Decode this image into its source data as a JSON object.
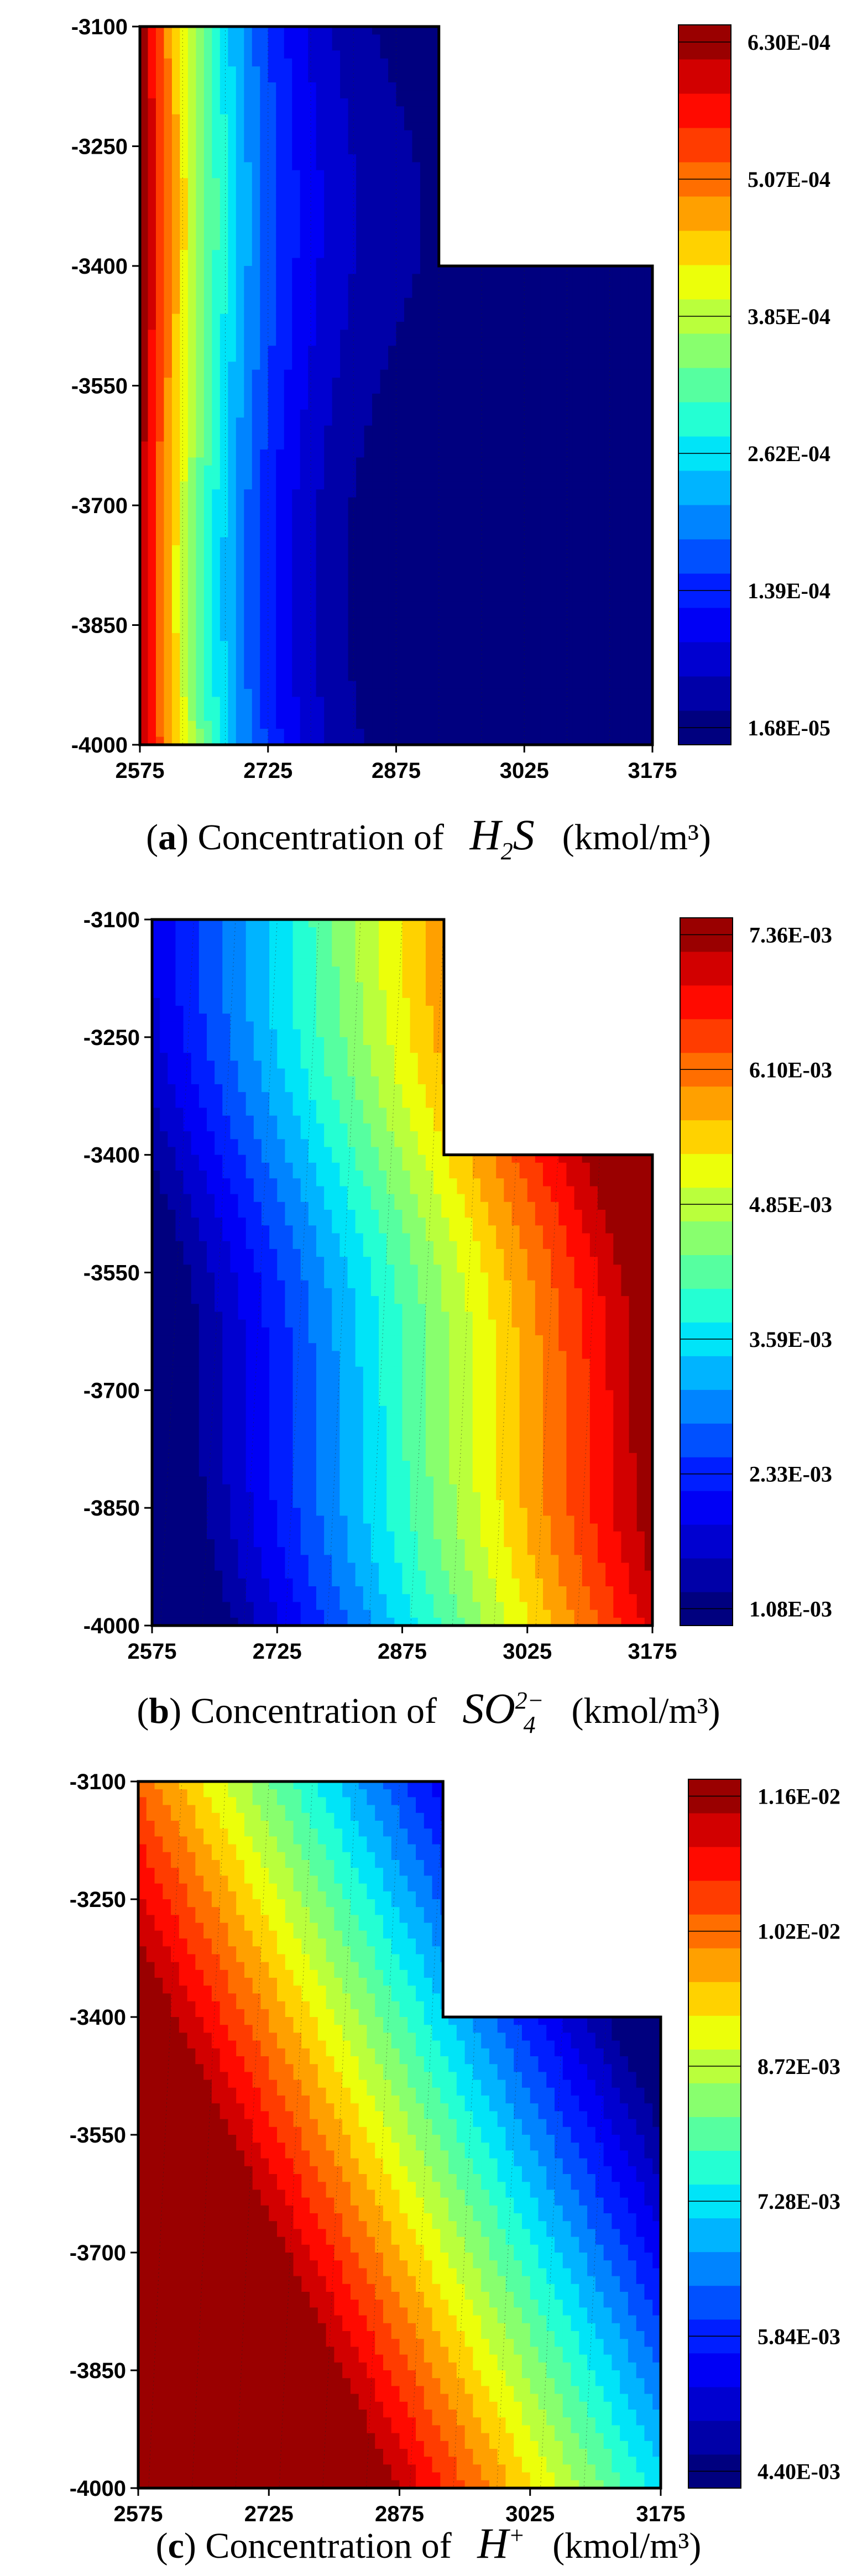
{
  "chart_data": [
    {
      "type": "contour",
      "panel_label": "a",
      "caption_prefix": "Concentration of",
      "species": {
        "base": "H",
        "sub": "2",
        "after": "S",
        "sup": ""
      },
      "unit": "(kmol/m³)",
      "x_ticks": [
        "2575",
        "2725",
        "2875",
        "3025",
        "3175"
      ],
      "y_ticks": [
        "-3100",
        "-3250",
        "-3400",
        "-3550",
        "-3700",
        "-3850",
        "-4000"
      ],
      "xlim": [
        2575,
        3175
      ],
      "ylim": [
        -4000,
        -3100
      ],
      "domain_outline": [
        [
          2575,
          -3100
        ],
        [
          2925,
          -3100
        ],
        [
          2925,
          -3400
        ],
        [
          3175,
          -3400
        ],
        [
          3175,
          -4000
        ],
        [
          2575,
          -4000
        ]
      ],
      "colorbar_labels": [
        "6.30E-04",
        "5.07E-04",
        "3.85E-04",
        "2.62E-04",
        "1.39E-04",
        "1.68E-05"
      ],
      "levels": 21,
      "trend": "high at left boundary (x=2575), decreasing rightward",
      "colors": {
        "low": "#00007f",
        "high": "#9a0000"
      }
    },
    {
      "type": "contour",
      "panel_label": "b",
      "caption_prefix": "Concentration of",
      "species": {
        "base": "SO",
        "sub": "4",
        "after": "",
        "sup": "2−"
      },
      "unit": "(kmol/m³)",
      "x_ticks": [
        "2575",
        "2725",
        "2875",
        "3025",
        "3175"
      ],
      "y_ticks": [
        "-3100",
        "-3250",
        "-3400",
        "-3550",
        "-3700",
        "-3850",
        "-4000"
      ],
      "xlim": [
        2575,
        3175
      ],
      "ylim": [
        -4000,
        -3100
      ],
      "domain_outline": [
        [
          2575,
          -3100
        ],
        [
          2925,
          -3100
        ],
        [
          2925,
          -3400
        ],
        [
          3175,
          -3400
        ],
        [
          3175,
          -4000
        ],
        [
          2575,
          -4000
        ]
      ],
      "colorbar_labels": [
        "7.36E-03",
        "6.10E-03",
        "4.85E-03",
        "3.59E-03",
        "2.33E-03",
        "1.08E-03"
      ],
      "levels": 21,
      "trend": "low at left, increasing toward upper right",
      "colors": {
        "low": "#00007f",
        "high": "#9a0000"
      }
    },
    {
      "type": "contour",
      "panel_label": "c",
      "caption_prefix": "Concentration of",
      "species": {
        "base": "H",
        "sub": "",
        "after": "",
        "sup": "+"
      },
      "unit": "(kmol/m³)",
      "x_ticks": [
        "2575",
        "2725",
        "2875",
        "3025",
        "3175"
      ],
      "y_ticks": [
        "-3100",
        "-3250",
        "-3400",
        "-3550",
        "-3700",
        "-3850",
        "-4000"
      ],
      "xlim": [
        2575,
        3175
      ],
      "ylim": [
        -4000,
        -3100
      ],
      "domain_outline": [
        [
          2575,
          -3100
        ],
        [
          2925,
          -3100
        ],
        [
          2925,
          -3400
        ],
        [
          3175,
          -3400
        ],
        [
          3175,
          -4000
        ],
        [
          2575,
          -4000
        ]
      ],
      "colorbar_labels": [
        "1.16E-02",
        "1.02E-02",
        "8.72E-03",
        "7.28E-03",
        "5.84E-03",
        "4.40E-03"
      ],
      "levels": 21,
      "trend": "high at lower left, decreasing toward upper right",
      "colors": {
        "low": "#00007f",
        "high": "#9a0000"
      }
    }
  ]
}
